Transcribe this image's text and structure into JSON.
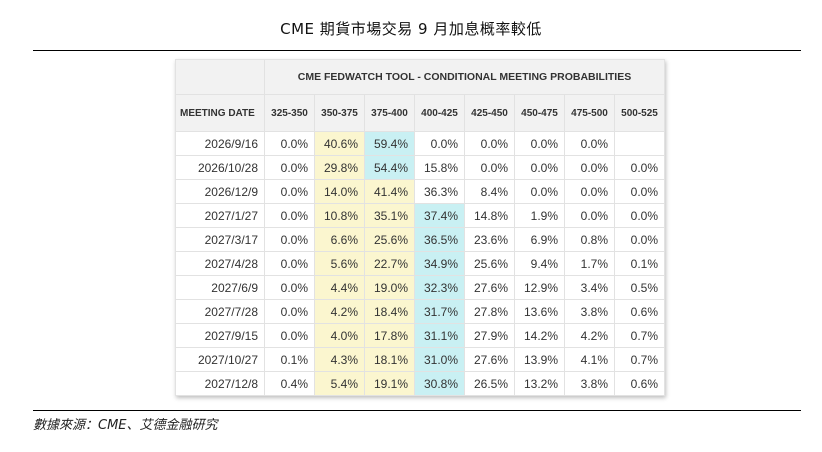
{
  "page": {
    "title": "CME 期貨市場交易 9 月加息概率較低",
    "source": "數據來源：CME、艾德金融研究"
  },
  "table": {
    "super_header": "CME FEDWATCH TOOL - CONDITIONAL MEETING PROBABILITIES",
    "date_header": "MEETING DATE",
    "columns": [
      "325-350",
      "350-375",
      "375-400",
      "400-425",
      "425-450",
      "450-475",
      "475-500",
      "500-525"
    ],
    "rows": [
      {
        "date": "2026/9/16",
        "values": [
          "0.0%",
          "40.6%",
          "59.4%",
          "0.0%",
          "0.0%",
          "0.0%",
          "0.0%",
          ""
        ],
        "highlight": [
          null,
          "y",
          "c",
          null,
          null,
          null,
          null,
          null
        ]
      },
      {
        "date": "2026/10/28",
        "values": [
          "0.0%",
          "29.8%",
          "54.4%",
          "15.8%",
          "0.0%",
          "0.0%",
          "0.0%",
          "0.0%"
        ],
        "highlight": [
          null,
          "y",
          "c",
          null,
          null,
          null,
          null,
          null
        ]
      },
      {
        "date": "2026/12/9",
        "values": [
          "0.0%",
          "14.0%",
          "41.4%",
          "36.3%",
          "8.4%",
          "0.0%",
          "0.0%",
          "0.0%"
        ],
        "highlight": [
          null,
          "y",
          "y",
          null,
          null,
          null,
          null,
          null
        ]
      },
      {
        "date": "2027/1/27",
        "values": [
          "0.0%",
          "10.8%",
          "35.1%",
          "37.4%",
          "14.8%",
          "1.9%",
          "0.0%",
          "0.0%"
        ],
        "highlight": [
          null,
          "y",
          "y",
          "c",
          null,
          null,
          null,
          null
        ]
      },
      {
        "date": "2027/3/17",
        "values": [
          "0.0%",
          "6.6%",
          "25.6%",
          "36.5%",
          "23.6%",
          "6.9%",
          "0.8%",
          "0.0%"
        ],
        "highlight": [
          null,
          "y",
          "y",
          "c",
          null,
          null,
          null,
          null
        ]
      },
      {
        "date": "2027/4/28",
        "values": [
          "0.0%",
          "5.6%",
          "22.7%",
          "34.9%",
          "25.6%",
          "9.4%",
          "1.7%",
          "0.1%"
        ],
        "highlight": [
          null,
          "y",
          "y",
          "c",
          null,
          null,
          null,
          null
        ]
      },
      {
        "date": "2027/6/9",
        "values": [
          "0.0%",
          "4.4%",
          "19.0%",
          "32.3%",
          "27.6%",
          "12.9%",
          "3.4%",
          "0.5%"
        ],
        "highlight": [
          null,
          "y",
          "y",
          "c",
          null,
          null,
          null,
          null
        ]
      },
      {
        "date": "2027/7/28",
        "values": [
          "0.0%",
          "4.2%",
          "18.4%",
          "31.7%",
          "27.8%",
          "13.6%",
          "3.8%",
          "0.6%"
        ],
        "highlight": [
          null,
          "y",
          "y",
          "c",
          null,
          null,
          null,
          null
        ]
      },
      {
        "date": "2027/9/15",
        "values": [
          "0.0%",
          "4.0%",
          "17.8%",
          "31.1%",
          "27.9%",
          "14.2%",
          "4.2%",
          "0.7%"
        ],
        "highlight": [
          null,
          "y",
          "y",
          "c",
          null,
          null,
          null,
          null
        ]
      },
      {
        "date": "2027/10/27",
        "values": [
          "0.1%",
          "4.3%",
          "18.1%",
          "31.0%",
          "27.6%",
          "13.9%",
          "4.1%",
          "0.7%"
        ],
        "highlight": [
          null,
          "y",
          "y",
          "c",
          null,
          null,
          null,
          null
        ]
      },
      {
        "date": "2027/12/8",
        "values": [
          "0.4%",
          "5.4%",
          "19.1%",
          "30.8%",
          "26.5%",
          "13.2%",
          "3.8%",
          "0.6%"
        ],
        "highlight": [
          null,
          "y",
          "y",
          "c",
          null,
          null,
          null,
          null
        ]
      }
    ]
  },
  "colors": {
    "highlight_yellow": "#fbf6cf",
    "highlight_cyan": "#c9f0f3",
    "header_bg": "#f2f2f2"
  }
}
